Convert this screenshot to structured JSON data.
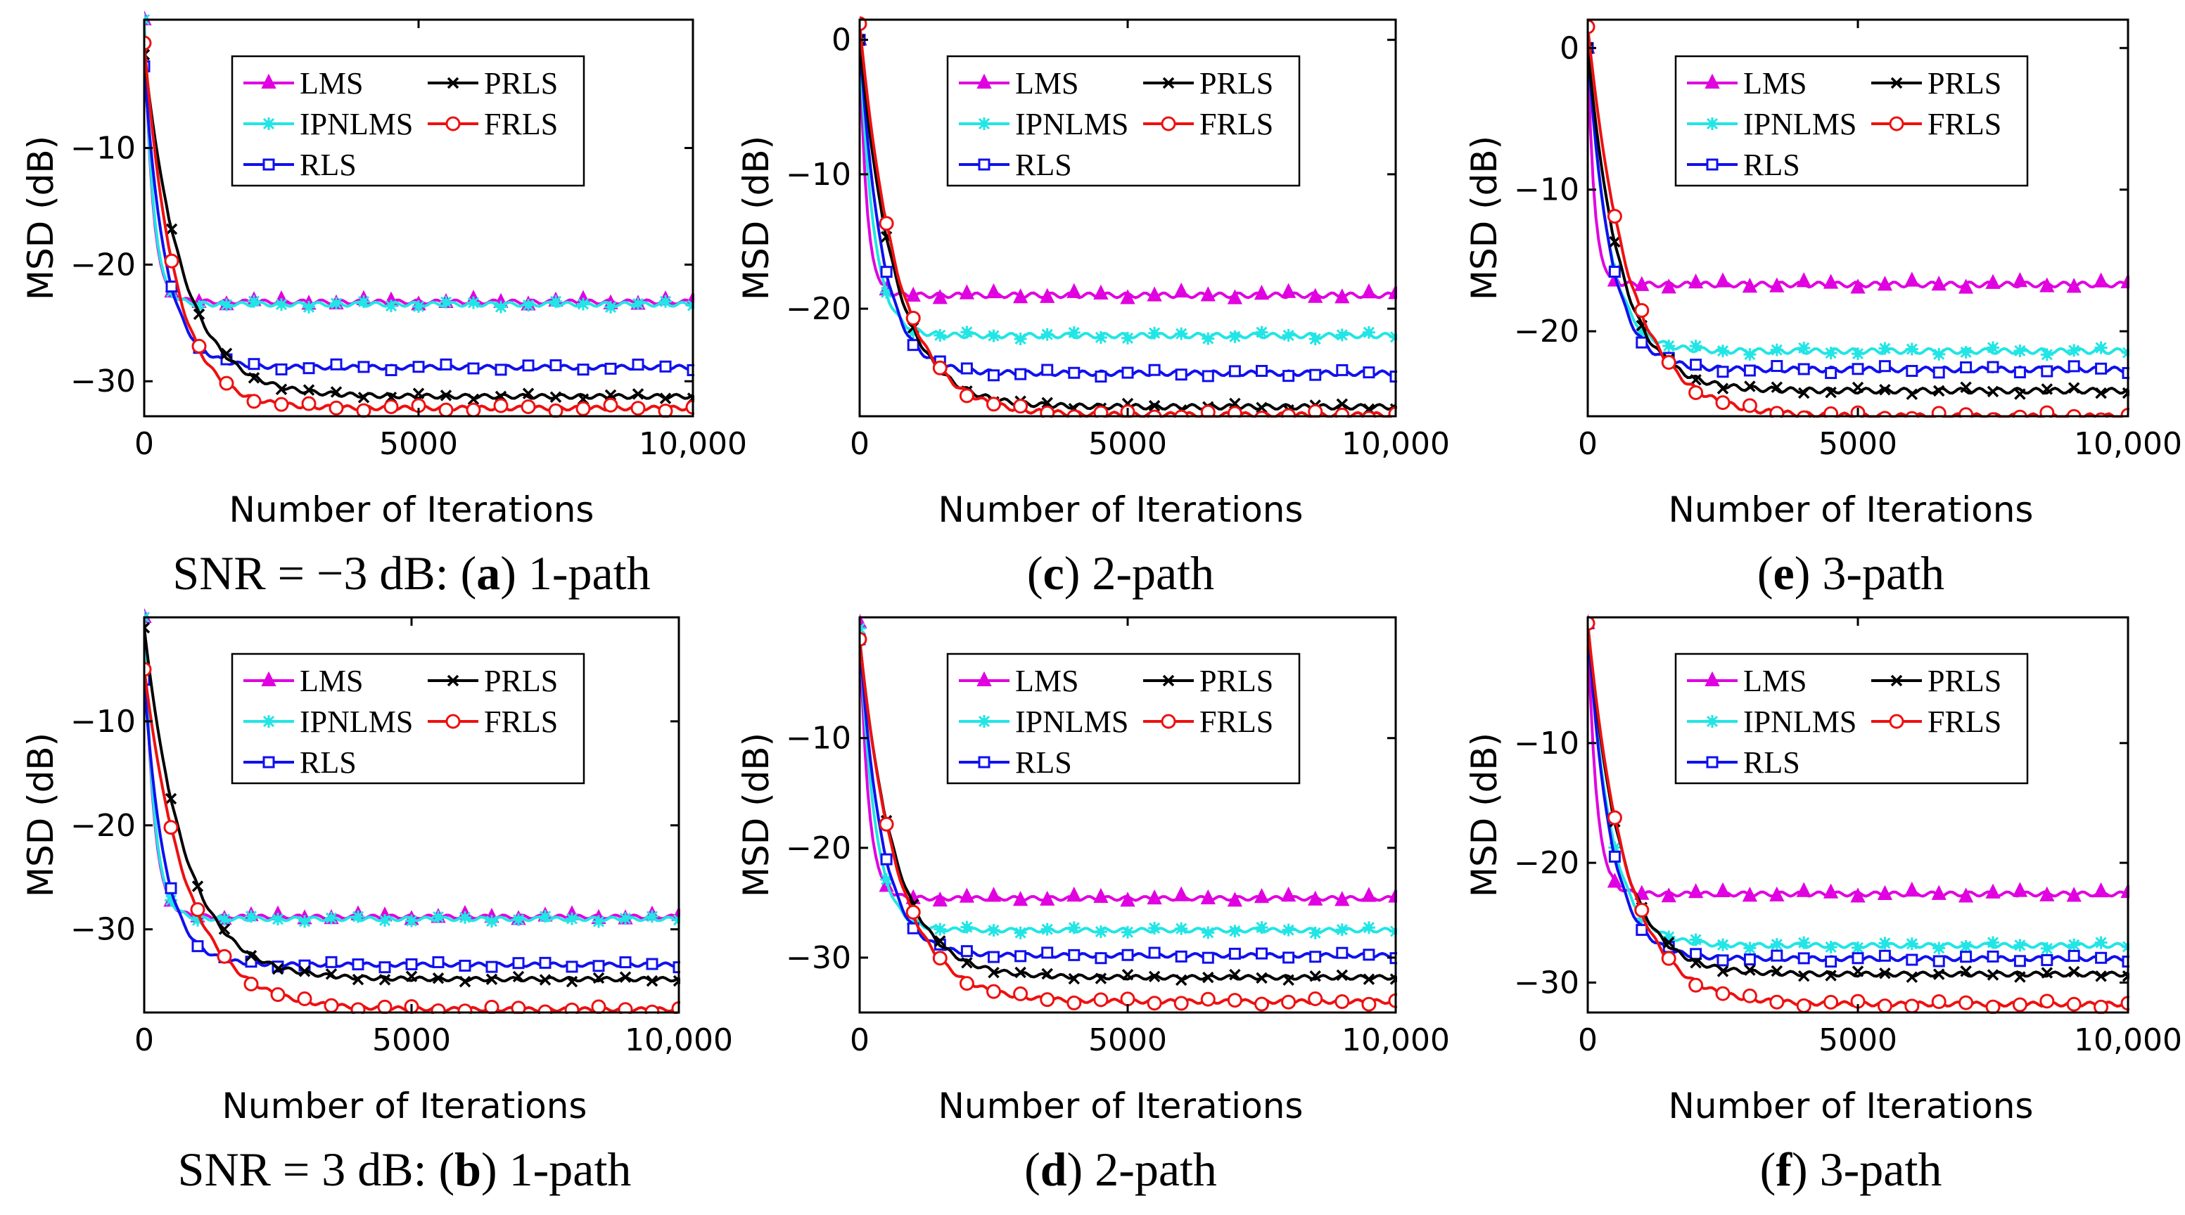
{
  "colors": {
    "LMS": "#e000e0",
    "IPNLMS": "#22e5e5",
    "RLS": "#1010ee",
    "PRLS": "#000000",
    "FRLS": "#ee1010"
  },
  "chart_data": [
    {
      "id": "a",
      "type": "line",
      "xlabel": "Number of Iterations",
      "ylabel": "MSD (dB)",
      "xlim": [
        0,
        10000
      ],
      "ylim": [
        -33,
        1
      ],
      "xticks": [
        0,
        5000,
        10000
      ],
      "xtick_labels": [
        "0",
        "5000",
        "10,000"
      ],
      "yticks": [
        -10,
        -20,
        -30
      ],
      "ytick_labels": [
        "−10",
        "−20",
        "−30"
      ],
      "caption": {
        "prefix": "SNR = −3 dB: (",
        "letter": "a",
        "suffix": ") 1-path"
      },
      "legend": [
        "LMS",
        "IPNLMS",
        "RLS",
        "PRLS",
        "FRLS"
      ],
      "series": [
        {
          "name": "LMS",
          "marker": "triangle",
          "start": 1,
          "floor": -23.2,
          "tau": 150
        },
        {
          "name": "IPNLMS",
          "marker": "asterisk",
          "start": 1,
          "floor": -23.4,
          "tau": 160
        },
        {
          "name": "RLS",
          "marker": "square",
          "start": -3,
          "floor": -28.8,
          "tau": 380
        },
        {
          "name": "PRLS",
          "marker": "cross",
          "start": -2,
          "floor": -31.3,
          "tau": 700
        },
        {
          "name": "FRLS",
          "marker": "circle",
          "start": -1,
          "floor": -32.3,
          "tau": 550
        }
      ]
    },
    {
      "id": "c",
      "type": "line",
      "xlabel": "Number of Iterations",
      "ylabel": "MSD (dB)",
      "xlim": [
        0,
        10000
      ],
      "ylim": [
        -28,
        1.5
      ],
      "xticks": [
        0,
        5000,
        10000
      ],
      "xtick_labels": [
        "0",
        "5000",
        "10,000"
      ],
      "yticks": [
        0,
        -10,
        -20
      ],
      "ytick_labels": [
        "0",
        "−10",
        "−20"
      ],
      "caption": {
        "prefix": "(",
        "letter": "c",
        "suffix": ") 2-path"
      },
      "legend": [
        "LMS",
        "IPNLMS",
        "RLS",
        "PRLS",
        "FRLS"
      ],
      "series": [
        {
          "name": "LMS",
          "marker": "triangle",
          "start": 0,
          "floor": -19.0,
          "tau": 130
        },
        {
          "name": "IPNLMS",
          "marker": "asterisk",
          "start": 0,
          "floor": -22.0,
          "tau": 260
        },
        {
          "name": "RLS",
          "marker": "square",
          "start": 0,
          "floor": -24.8,
          "tau": 420
        },
        {
          "name": "PRLS",
          "marker": "cross",
          "start": 0,
          "floor": -27.3,
          "tau": 650
        },
        {
          "name": "FRLS",
          "marker": "circle",
          "start": 1.2,
          "floor": -27.9,
          "tau": 700
        }
      ]
    },
    {
      "id": "e",
      "type": "line",
      "xlabel": "Number of Iterations",
      "ylabel": "MSD (dB)",
      "xlim": [
        0,
        10000
      ],
      "ylim": [
        -26,
        2
      ],
      "xticks": [
        0,
        5000,
        10000
      ],
      "xtick_labels": [
        "0",
        "5000",
        "10,000"
      ],
      "yticks": [
        0,
        -10,
        -20
      ],
      "ytick_labels": [
        "0",
        "−10",
        "−20"
      ],
      "caption": {
        "prefix": "(",
        "letter": "e",
        "suffix": ") 3-path"
      },
      "legend": [
        "LMS",
        "IPNLMS",
        "RLS",
        "PRLS",
        "FRLS"
      ],
      "series": [
        {
          "name": "LMS",
          "marker": "triangle",
          "start": 0,
          "floor": -16.7,
          "tau": 120
        },
        {
          "name": "IPNLMS",
          "marker": "asterisk",
          "start": 0,
          "floor": -21.4,
          "tau": 380
        },
        {
          "name": "RLS",
          "marker": "square",
          "start": 0,
          "floor": -22.7,
          "tau": 420
        },
        {
          "name": "PRLS",
          "marker": "cross",
          "start": 0,
          "floor": -24.2,
          "tau": 600
        },
        {
          "name": "FRLS",
          "marker": "circle",
          "start": 1.5,
          "floor": -26.0,
          "tau": 750
        }
      ]
    },
    {
      "id": "b",
      "type": "line",
      "xlabel": "Number of Iterations",
      "ylabel": "MSD (dB)",
      "xlim": [
        0,
        10000
      ],
      "ylim": [
        -38,
        0
      ],
      "xticks": [
        0,
        5000,
        10000
      ],
      "xtick_labels": [
        "0",
        "5000",
        "10,000"
      ],
      "yticks": [
        -10,
        -20,
        -30
      ],
      "ytick_labels": [
        "−10",
        "−20",
        "−30"
      ],
      "caption": {
        "prefix": "SNR = 3 dB: (",
        "letter": "b",
        "suffix": ") 1-path"
      },
      "legend": [
        "LMS",
        "IPNLMS",
        "RLS",
        "PRLS",
        "FRLS"
      ],
      "series": [
        {
          "name": "LMS",
          "marker": "triangle",
          "start": 0,
          "floor": -28.8,
          "tau": 170
        },
        {
          "name": "IPNLMS",
          "marker": "asterisk",
          "start": 0,
          "floor": -29.0,
          "tau": 180
        },
        {
          "name": "RLS",
          "marker": "square",
          "start": -6,
          "floor": -33.4,
          "tau": 380
        },
        {
          "name": "PRLS",
          "marker": "cross",
          "start": -1,
          "floor": -34.8,
          "tau": 750
        },
        {
          "name": "FRLS",
          "marker": "circle",
          "start": -5,
          "floor": -37.7,
          "tau": 800
        }
      ]
    },
    {
      "id": "d",
      "type": "line",
      "xlabel": "Number of Iterations",
      "ylabel": "MSD (dB)",
      "xlim": [
        0,
        10000
      ],
      "ylim": [
        -35,
        1
      ],
      "xticks": [
        0,
        5000,
        10000
      ],
      "xtick_labels": [
        "0",
        "5000",
        "10,000"
      ],
      "yticks": [
        -10,
        -20,
        -30
      ],
      "ytick_labels": [
        "−10",
        "−20",
        "−30"
      ],
      "caption": {
        "prefix": "(",
        "letter": "d",
        "suffix": ") 2-path"
      },
      "legend": [
        "LMS",
        "IPNLMS",
        "RLS",
        "PRLS",
        "FRLS"
      ],
      "series": [
        {
          "name": "LMS",
          "marker": "triangle",
          "start": 0.5,
          "floor": -24.6,
          "tau": 160
        },
        {
          "name": "IPNLMS",
          "marker": "asterisk",
          "start": 0,
          "floor": -27.5,
          "tau": 280
        },
        {
          "name": "RLS",
          "marker": "square",
          "start": -1,
          "floor": -29.8,
          "tau": 420
        },
        {
          "name": "PRLS",
          "marker": "cross",
          "start": -1,
          "floor": -31.8,
          "tau": 650
        },
        {
          "name": "FRLS",
          "marker": "circle",
          "start": -1,
          "floor": -34.0,
          "tau": 700
        }
      ]
    },
    {
      "id": "f",
      "type": "line",
      "xlabel": "Number of Iterations",
      "ylabel": "MSD (dB)",
      "xlim": [
        0,
        10000
      ],
      "ylim": [
        -32.5,
        0.5
      ],
      "xticks": [
        0,
        5000,
        10000
      ],
      "xtick_labels": [
        "0",
        "5000",
        "10,000"
      ],
      "yticks": [
        -10,
        -20,
        -30
      ],
      "ytick_labels": [
        "−10",
        "−20",
        "−30"
      ],
      "caption": {
        "prefix": "(",
        "letter": "f",
        "suffix": ") 3-path"
      },
      "legend": [
        "LMS",
        "IPNLMS",
        "RLS",
        "PRLS",
        "FRLS"
      ],
      "series": [
        {
          "name": "LMS",
          "marker": "triangle",
          "start": 0,
          "floor": -22.6,
          "tau": 160
        },
        {
          "name": "IPNLMS",
          "marker": "asterisk",
          "start": 0,
          "floor": -26.9,
          "tau": 420
        },
        {
          "name": "RLS",
          "marker": "square",
          "start": 0,
          "floor": -28.0,
          "tau": 420
        },
        {
          "name": "PRLS",
          "marker": "cross",
          "start": 0,
          "floor": -29.3,
          "tau": 600
        },
        {
          "name": "FRLS",
          "marker": "circle",
          "start": 0,
          "floor": -31.8,
          "tau": 700
        }
      ]
    }
  ]
}
